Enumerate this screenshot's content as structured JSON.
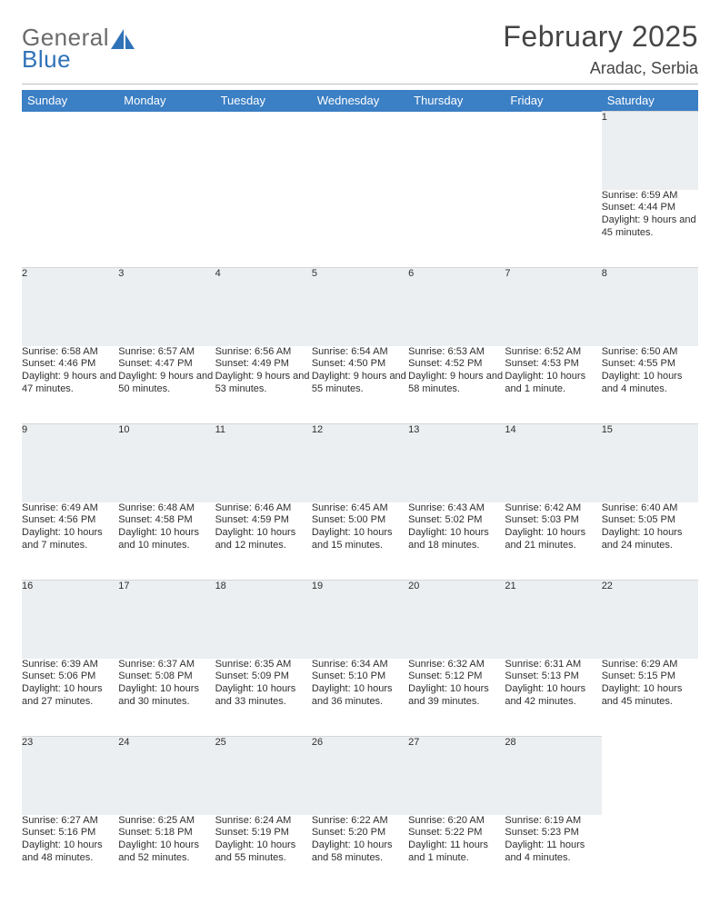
{
  "logo": {
    "word1": "General",
    "word2": "Blue"
  },
  "title": "February 2025",
  "location": "Aradac, Serbia",
  "colors": {
    "header_bg": "#3b7fc4",
    "header_text": "#ffffff",
    "daynum_bg": "#eceff1",
    "logo_gray": "#6b6b6b",
    "logo_blue": "#2f72b8",
    "text": "#2e2e2e"
  },
  "day_headers": [
    "Sunday",
    "Monday",
    "Tuesday",
    "Wednesday",
    "Thursday",
    "Friday",
    "Saturday"
  ],
  "weeks": [
    [
      null,
      null,
      null,
      null,
      null,
      null,
      {
        "n": "1",
        "sr": "6:59 AM",
        "ss": "4:44 PM",
        "dl": "9 hours and 45 minutes."
      }
    ],
    [
      {
        "n": "2",
        "sr": "6:58 AM",
        "ss": "4:46 PM",
        "dl": "9 hours and 47 minutes."
      },
      {
        "n": "3",
        "sr": "6:57 AM",
        "ss": "4:47 PM",
        "dl": "9 hours and 50 minutes."
      },
      {
        "n": "4",
        "sr": "6:56 AM",
        "ss": "4:49 PM",
        "dl": "9 hours and 53 minutes."
      },
      {
        "n": "5",
        "sr": "6:54 AM",
        "ss": "4:50 PM",
        "dl": "9 hours and 55 minutes."
      },
      {
        "n": "6",
        "sr": "6:53 AM",
        "ss": "4:52 PM",
        "dl": "9 hours and 58 minutes."
      },
      {
        "n": "7",
        "sr": "6:52 AM",
        "ss": "4:53 PM",
        "dl": "10 hours and 1 minute."
      },
      {
        "n": "8",
        "sr": "6:50 AM",
        "ss": "4:55 PM",
        "dl": "10 hours and 4 minutes."
      }
    ],
    [
      {
        "n": "9",
        "sr": "6:49 AM",
        "ss": "4:56 PM",
        "dl": "10 hours and 7 minutes."
      },
      {
        "n": "10",
        "sr": "6:48 AM",
        "ss": "4:58 PM",
        "dl": "10 hours and 10 minutes."
      },
      {
        "n": "11",
        "sr": "6:46 AM",
        "ss": "4:59 PM",
        "dl": "10 hours and 12 minutes."
      },
      {
        "n": "12",
        "sr": "6:45 AM",
        "ss": "5:00 PM",
        "dl": "10 hours and 15 minutes."
      },
      {
        "n": "13",
        "sr": "6:43 AM",
        "ss": "5:02 PM",
        "dl": "10 hours and 18 minutes."
      },
      {
        "n": "14",
        "sr": "6:42 AM",
        "ss": "5:03 PM",
        "dl": "10 hours and 21 minutes."
      },
      {
        "n": "15",
        "sr": "6:40 AM",
        "ss": "5:05 PM",
        "dl": "10 hours and 24 minutes."
      }
    ],
    [
      {
        "n": "16",
        "sr": "6:39 AM",
        "ss": "5:06 PM",
        "dl": "10 hours and 27 minutes."
      },
      {
        "n": "17",
        "sr": "6:37 AM",
        "ss": "5:08 PM",
        "dl": "10 hours and 30 minutes."
      },
      {
        "n": "18",
        "sr": "6:35 AM",
        "ss": "5:09 PM",
        "dl": "10 hours and 33 minutes."
      },
      {
        "n": "19",
        "sr": "6:34 AM",
        "ss": "5:10 PM",
        "dl": "10 hours and 36 minutes."
      },
      {
        "n": "20",
        "sr": "6:32 AM",
        "ss": "5:12 PM",
        "dl": "10 hours and 39 minutes."
      },
      {
        "n": "21",
        "sr": "6:31 AM",
        "ss": "5:13 PM",
        "dl": "10 hours and 42 minutes."
      },
      {
        "n": "22",
        "sr": "6:29 AM",
        "ss": "5:15 PM",
        "dl": "10 hours and 45 minutes."
      }
    ],
    [
      {
        "n": "23",
        "sr": "6:27 AM",
        "ss": "5:16 PM",
        "dl": "10 hours and 48 minutes."
      },
      {
        "n": "24",
        "sr": "6:25 AM",
        "ss": "5:18 PM",
        "dl": "10 hours and 52 minutes."
      },
      {
        "n": "25",
        "sr": "6:24 AM",
        "ss": "5:19 PM",
        "dl": "10 hours and 55 minutes."
      },
      {
        "n": "26",
        "sr": "6:22 AM",
        "ss": "5:20 PM",
        "dl": "10 hours and 58 minutes."
      },
      {
        "n": "27",
        "sr": "6:20 AM",
        "ss": "5:22 PM",
        "dl": "11 hours and 1 minute."
      },
      {
        "n": "28",
        "sr": "6:19 AM",
        "ss": "5:23 PM",
        "dl": "11 hours and 4 minutes."
      },
      null
    ]
  ],
  "labels": {
    "sunrise": "Sunrise: ",
    "sunset": "Sunset: ",
    "daylight": "Daylight: "
  }
}
